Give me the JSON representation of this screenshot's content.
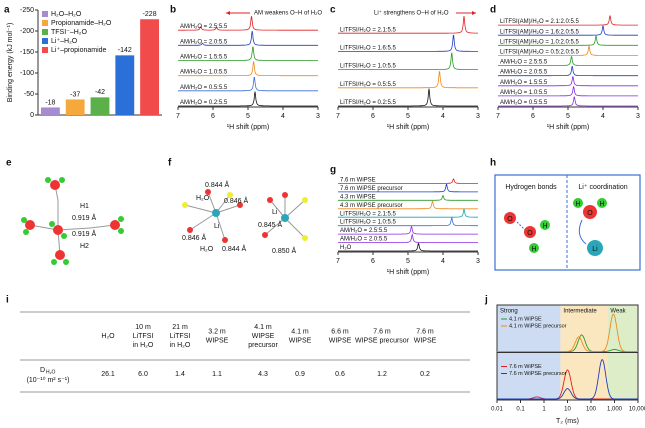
{
  "chart_data": [
    {
      "panel": "a",
      "type": "bar",
      "ylabel": "Binding energy (kJ mol⁻¹)",
      "categories": [
        "H₂O–H₂O",
        "Propionamide–H₂O",
        "TFSI⁻–H₂O",
        "Li⁺–H₂O",
        "Li⁺–propionamide"
      ],
      "values": [
        -18,
        -37,
        -42,
        -142,
        -228
      ],
      "colors": [
        "#a58bd0",
        "#f5a83c",
        "#5cb04a",
        "#2b6fd8",
        "#f24b4b"
      ],
      "ylim": [
        0,
        -250
      ],
      "yticks": [
        0,
        -50,
        -100,
        -150,
        -200,
        -250
      ]
    },
    {
      "panel": "b",
      "type": "spectrum",
      "xlabel": "¹H shift (ppm)",
      "xlim": [
        7,
        3
      ],
      "xticks": [
        7,
        6,
        5,
        4,
        3
      ],
      "annotation": "AM weakens O–H of H₂O",
      "annotation_color": "#e02020",
      "series": [
        {
          "name": "AM/H₂O = 2.5:5.5",
          "color": "#e02020",
          "peaks": [
            {
              "ppm": 4.9,
              "height": 1
            },
            {
              "ppm": 6.35,
              "height": 0.25
            },
            {
              "ppm": 5.9,
              "height": 0.2
            }
          ]
        },
        {
          "name": "AM/H₂O = 2.0:5.5",
          "color": "#1f3fbf",
          "peaks": [
            {
              "ppm": 4.88,
              "height": 1
            },
            {
              "ppm": 6.3,
              "height": 0.15
            }
          ]
        },
        {
          "name": "AM/H₂O = 1.5:5.5",
          "color": "#2a9a2a",
          "peaks": [
            {
              "ppm": 4.86,
              "height": 1
            }
          ]
        },
        {
          "name": "AM/H₂O = 1.0:5.5",
          "color": "#f08a1a",
          "peaks": [
            {
              "ppm": 4.84,
              "height": 1
            }
          ]
        },
        {
          "name": "AM/H₂O = 0.5:5.5",
          "color": "#3a6fd8",
          "peaks": [
            {
              "ppm": 4.82,
              "height": 1
            }
          ]
        },
        {
          "name": "AM/H₂O = 0.2:5.5",
          "color": "#111111",
          "peaks": [
            {
              "ppm": 4.8,
              "height": 1
            }
          ]
        }
      ]
    },
    {
      "panel": "c",
      "type": "spectrum",
      "xlabel": "¹H shift (ppm)",
      "xlim": [
        7,
        3
      ],
      "xticks": [
        7,
        6,
        5,
        4,
        3
      ],
      "annotation": "Li⁺ strengthens O–H of H₂O",
      "annotation_color": "#e02020",
      "series": [
        {
          "name": "LiTFSI/H₂O = 2.1:5.5",
          "color": "#e02020",
          "peaks": [
            {
              "ppm": 3.4,
              "height": 1
            }
          ]
        },
        {
          "name": "LiTFSI/H₂O = 1.6:5.5",
          "color": "#1f3fbf",
          "peaks": [
            {
              "ppm": 3.7,
              "height": 1
            }
          ]
        },
        {
          "name": "LiTFSI/H₂O = 1.0:5.5",
          "color": "#2a9a2a",
          "peaks": [
            {
              "ppm": 3.75,
              "height": 1
            }
          ]
        },
        {
          "name": "LiTFSI/H₂O = 0.5:5.5",
          "color": "#f08a1a",
          "peaks": [
            {
              "ppm": 4.1,
              "height": 1
            }
          ]
        },
        {
          "name": "LiTFSI/H₂O = 0.2:5.5",
          "color": "#111111",
          "peaks": [
            {
              "ppm": 4.4,
              "height": 1
            }
          ]
        }
      ]
    },
    {
      "panel": "d",
      "type": "spectrum",
      "xlabel": "¹H shift (ppm)",
      "xlim": [
        7,
        3
      ],
      "xticks": [
        7,
        6,
        5,
        4,
        3
      ],
      "series": [
        {
          "name": "LiTFSI(AM)/H₂O = 2.1:2.0:5.5",
          "color": "#e02020",
          "peaks": [
            {
              "ppm": 3.8,
              "height": 1
            }
          ]
        },
        {
          "name": "LiTFSI(AM)/H₂O = 1.6:2.0:5.5",
          "color": "#1f3fbf",
          "peaks": [
            {
              "ppm": 4.0,
              "height": 1
            }
          ]
        },
        {
          "name": "LiTFSI(AM)/H₂O = 1.0:2.0:5.5",
          "color": "#2a9a2a",
          "peaks": [
            {
              "ppm": 4.2,
              "height": 1
            }
          ]
        },
        {
          "name": "LiTFSI(AM)/H₂O = 0.5:2.0:5.5",
          "color": "#f08a1a",
          "peaks": [
            {
              "ppm": 4.4,
              "height": 1
            }
          ]
        },
        {
          "name": "AM/H₂O = 2.5:5.5",
          "color": "#2a9a2a",
          "peaks": [
            {
              "ppm": 4.9,
              "height": 1
            }
          ]
        },
        {
          "name": "AM/H₂O = 2.0:5.5",
          "color": "#1f3fbf",
          "peaks": [
            {
              "ppm": 4.88,
              "height": 1
            }
          ]
        },
        {
          "name": "AM/H₂O = 1.5:5.5",
          "color": "#8a2be2",
          "peaks": [
            {
              "ppm": 4.86,
              "height": 1
            }
          ]
        },
        {
          "name": "AM/H₂O = 1.0:5.5",
          "color": "#8a2be2",
          "peaks": [
            {
              "ppm": 4.84,
              "height": 1
            }
          ]
        },
        {
          "name": "AM/H₂O = 0.5:5.5",
          "color": "#8a2be2",
          "peaks": [
            {
              "ppm": 4.82,
              "height": 1
            }
          ]
        }
      ]
    },
    {
      "panel": "g",
      "type": "spectrum",
      "xlabel": "¹H shift (ppm)",
      "xlim": [
        7,
        3
      ],
      "xticks": [
        7,
        6,
        5,
        4,
        3
      ],
      "series": [
        {
          "name": "7.6 m WiPSE",
          "color": "#e02020",
          "peaks": [
            {
              "ppm": 3.7,
              "height": 0.6
            }
          ]
        },
        {
          "name": "7.6 m WiPSE precursor",
          "color": "#1f3fbf",
          "peaks": [
            {
              "ppm": 3.9,
              "height": 1
            }
          ]
        },
        {
          "name": "4.3 m WiPSE",
          "color": "#2a9a2a",
          "peaks": [
            {
              "ppm": 4.0,
              "height": 0.6
            }
          ]
        },
        {
          "name": "4.3 m WiPSE precursor",
          "color": "#f08a1a",
          "peaks": [
            {
              "ppm": 4.3,
              "height": 1
            }
          ]
        },
        {
          "name": "LiTFSI/H₂O = 2.1:5.5",
          "color": "#19a6a6",
          "peaks": [
            {
              "ppm": 3.4,
              "height": 1
            }
          ]
        },
        {
          "name": "LiTFSI/H₂O = 1.0:5.5",
          "color": "#3a6fd8",
          "peaks": [
            {
              "ppm": 3.75,
              "height": 1
            }
          ]
        },
        {
          "name": "AM/H₂O = 2.5:5.5",
          "color": "#8a2be2",
          "peaks": [
            {
              "ppm": 4.9,
              "height": 1
            }
          ]
        },
        {
          "name": "AM/H₂O = 2.0:5.5",
          "color": "#8a2be2",
          "peaks": [
            {
              "ppm": 4.88,
              "height": 1
            }
          ]
        },
        {
          "name": "H₂O",
          "color": "#111111",
          "peaks": [
            {
              "ppm": 4.7,
              "height": 1
            }
          ]
        }
      ]
    },
    {
      "panel": "j",
      "type": "distribution",
      "xlabel": "T₂ (ms)",
      "log": true,
      "xlim": [
        0.01,
        10000
      ],
      "xticks": [
        0.01,
        0.1,
        1,
        10,
        100,
        {
          "value": 1000,
          "label": "1,000"
        },
        {
          "value": 10000,
          "label": "10,000"
        }
      ],
      "regions": [
        {
          "label": "Strong",
          "from": 0.01,
          "to": 5,
          "color": "#cddcf2"
        },
        {
          "label": "Intermediate",
          "from": 5,
          "to": 500,
          "color": "#fbe7bf"
        },
        {
          "label": "Weak",
          "from": 500,
          "to": 10000,
          "color": "#dcedc8"
        }
      ],
      "subplots": [
        {
          "series": [
            {
              "name": "4.1 m WiPSE",
              "color": "#2a9a2a",
              "peaks": [
                {
                  "x": 40,
                  "height": 0.4
                },
                {
                  "x": 1000,
                  "height": 0.05
                }
              ]
            },
            {
              "name": "4.1 m WiPSE precursor",
              "color": "#f08a1a",
              "peaks": [
                {
                  "x": 30,
                  "height": 0.35
                },
                {
                  "x": 900,
                  "height": 0.9
                }
              ]
            }
          ]
        },
        {
          "series": [
            {
              "name": "7.6 m WiPSE",
              "color": "#e02020",
              "peaks": [
                {
                  "x": 10,
                  "height": 0.7
                },
                {
                  "x": 0.5,
                  "height": 0.05
                }
              ]
            },
            {
              "name": "7.6 m WiPSE precursor",
              "color": "#1f3fbf",
              "peaks": [
                {
                  "x": 10,
                  "height": 0.25
                },
                {
                  "x": 300,
                  "height": 0.95
                }
              ]
            }
          ]
        }
      ]
    }
  ],
  "panel_e": {
    "letter": "e",
    "labels": [
      "H1",
      "0.919 Å",
      "0.919 Å",
      "H2"
    ]
  },
  "panel_f": {
    "letter": "f",
    "labels": [
      "0.844 Å",
      "H₂O",
      "0.846 Å",
      "Li",
      "0.846 Å",
      "H₂O",
      "0.844 Å",
      "0.845 Å",
      "Li",
      "0.850 Å"
    ]
  },
  "panel_h": {
    "letter": "h",
    "left_title": "Hydrogen bonds",
    "right_title": "Li⁺ coordination",
    "atoms": [
      "H",
      "O",
      "H",
      "O",
      "H",
      "H",
      "O",
      "Li"
    ]
  },
  "table": {
    "letter": "i",
    "headers": [
      [
        "H₂O"
      ],
      [
        "10 m",
        "LiTFSI",
        "in H₂O"
      ],
      [
        "21 m",
        "LiTFSI",
        "in H₂O"
      ],
      [
        "3.2 m",
        "WIPSE"
      ],
      [
        "4.1 m",
        "WIPSE",
        "precursor"
      ],
      [
        "4.1 m",
        "WIPSE"
      ],
      [
        "6.6 m",
        "WIPSE"
      ],
      [
        "7.6 m",
        "WIPSE precursor"
      ],
      [
        "7.6 m",
        "WIPSE"
      ]
    ],
    "row_label": {
      "symbol": "D",
      "subscript": "H₂O",
      "units": "(10⁻¹⁰ m² s⁻¹)"
    },
    "values": [
      "26.1",
      "6.0",
      "1.4",
      "1.1",
      "4.3",
      "0.9",
      "0.6",
      "1.2",
      "0.2"
    ]
  }
}
